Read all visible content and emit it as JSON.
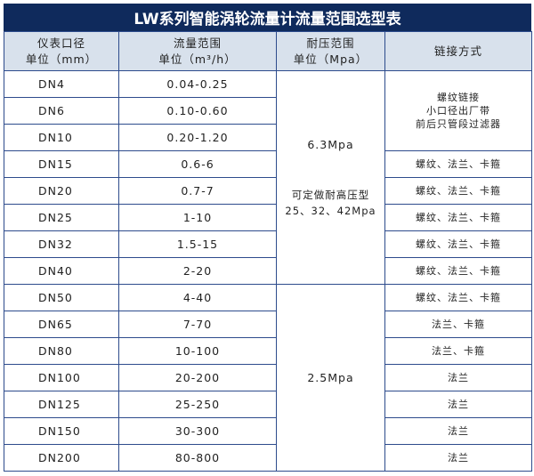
{
  "title": "LW系列智能涡轮流量计流量范围选型表",
  "headers": [
    [
      "仪表口径",
      "单位（mm）"
    ],
    [
      "流量范围",
      "单位（m³/h）"
    ],
    [
      "耐压范围",
      "单位（Mpa）"
    ],
    [
      "链接方式"
    ]
  ],
  "rows": [
    {
      "dn": "DN4",
      "flow": "0.04-0.25"
    },
    {
      "dn": "DN6",
      "flow": "0.10-0.60"
    },
    {
      "dn": "DN10",
      "flow": "0.20-1.20"
    },
    {
      "dn": "DN15",
      "flow": "0.6-6"
    },
    {
      "dn": "DN20",
      "flow": "0.7-7"
    },
    {
      "dn": "DN25",
      "flow": "1-10"
    },
    {
      "dn": "DN32",
      "flow": "1.5-15"
    },
    {
      "dn": "DN40",
      "flow": "2-20"
    },
    {
      "dn": "DN50",
      "flow": "4-40"
    },
    {
      "dn": "DN65",
      "flow": "7-70"
    },
    {
      "dn": "DN80",
      "flow": "10-100"
    },
    {
      "dn": "DN100",
      "flow": "20-200"
    },
    {
      "dn": "DN125",
      "flow": "25-250"
    },
    {
      "dn": "DN150",
      "flow": "30-300"
    },
    {
      "dn": "DN200",
      "flow": "80-800"
    }
  ],
  "pressure": {
    "high": "6.3Mpa",
    "high_note1": "可定做耐高压型",
    "high_note2": "25、32、42Mpa",
    "low": "2.5Mpa"
  },
  "connection": {
    "small": [
      "螺纹链接",
      "小口径出厂带",
      "前后只管段过滤器"
    ],
    "thread_flange_clamp": "螺纹、法兰、卡箍",
    "flange_clamp": "法兰、卡箍",
    "flange": "法兰"
  },
  "colors": {
    "title_bg": "#0f2a5c",
    "header_bg": "#d8e1ec",
    "border": "#2d4b8c"
  }
}
